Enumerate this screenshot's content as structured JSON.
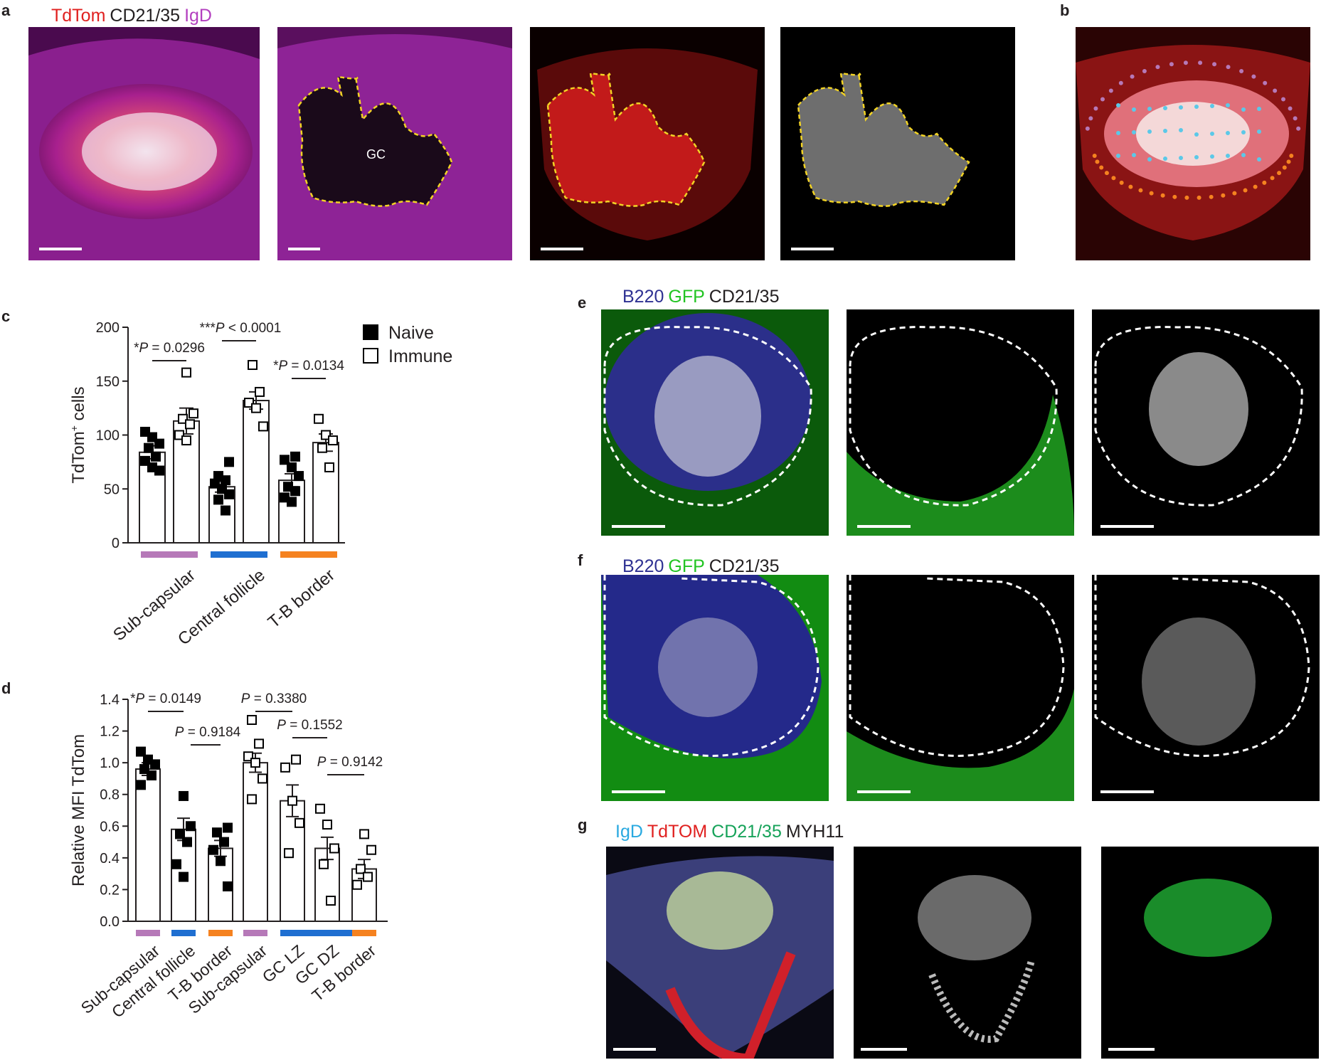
{
  "panels": {
    "a": {
      "letter": "a",
      "stain": [
        {
          "text": "TdTom",
          "color": "#e0201f"
        },
        {
          "text": "CD21/35",
          "color": "#231f20"
        },
        {
          "text": "IgD",
          "color": "#b33fbf"
        }
      ],
      "gc_label": "GC"
    },
    "b": {
      "letter": "b"
    },
    "c": {
      "letter": "c"
    },
    "d": {
      "letter": "d"
    },
    "e": {
      "letter": "e",
      "stain": [
        {
          "text": "B220",
          "color": "#2e3192"
        },
        {
          "text": "GFP",
          "color": "#22c422"
        },
        {
          "text": "CD21/35",
          "color": "#231f20"
        }
      ]
    },
    "f": {
      "letter": "f",
      "stain": [
        {
          "text": "B220",
          "color": "#2e3192"
        },
        {
          "text": "GFP",
          "color": "#22c422"
        },
        {
          "text": "CD21/35",
          "color": "#231f20"
        }
      ]
    },
    "g": {
      "letter": "g",
      "stain": [
        {
          "text": "IgD",
          "color": "#29a9e0"
        },
        {
          "text": "TdTOM",
          "color": "#e0201f"
        },
        {
          "text": "CD21/35",
          "color": "#17a35a"
        },
        {
          "text": "MYH11",
          "color": "#231f20"
        }
      ]
    }
  },
  "region_colors": {
    "subcapsular": "#b679b8",
    "central": "#1f6fd1",
    "tb_border": "#f58220"
  },
  "chart_data": [
    {
      "id": "c",
      "type": "bar",
      "ylabel_main": "TdTom",
      "ylabel_sup": "+",
      "ylabel_rest": " cells",
      "ylim": [
        0,
        200
      ],
      "yticks": [
        0,
        50,
        100,
        150,
        200
      ],
      "legend": [
        {
          "name": "Naive",
          "filled": true
        },
        {
          "name": "Immune",
          "filled": false
        }
      ],
      "groups": [
        "Sub-capsular",
        "Central follicle",
        "T-B border"
      ],
      "bars": [
        {
          "group": 0,
          "filled": true,
          "mean": 84,
          "sem": 6,
          "points": [
            103,
            98,
            92,
            88,
            80,
            76,
            70,
            67
          ]
        },
        {
          "group": 0,
          "filled": false,
          "mean": 113,
          "sem": 12,
          "points": [
            158,
            120,
            115,
            110,
            100,
            95
          ]
        },
        {
          "group": 1,
          "filled": true,
          "mean": 52,
          "sem": 5,
          "points": [
            75,
            62,
            58,
            55,
            50,
            45,
            40,
            30
          ]
        },
        {
          "group": 1,
          "filled": false,
          "mean": 132,
          "sem": 8,
          "points": [
            165,
            140,
            130,
            125,
            108
          ]
        },
        {
          "group": 2,
          "filled": true,
          "mean": 58,
          "sem": 6,
          "points": [
            80,
            77,
            70,
            62,
            52,
            48,
            42,
            38
          ]
        },
        {
          "group": 2,
          "filled": false,
          "mean": 93,
          "sem": 8,
          "points": [
            115,
            100,
            95,
            88,
            70
          ]
        }
      ],
      "annotations": [
        {
          "prefix": "*",
          "p": "P",
          "rest": " = 0.0296",
          "bars": [
            0,
            1
          ]
        },
        {
          "prefix": "***",
          "p": "P",
          "rest": " < 0.0001",
          "bars": [
            2,
            3
          ]
        },
        {
          "prefix": "*",
          "p": "P",
          "rest": " = 0.0134",
          "bars": [
            4,
            5
          ]
        }
      ]
    },
    {
      "id": "d",
      "type": "bar",
      "ylabel": "Relative MFI TdTom",
      "ylim": [
        0,
        1.4
      ],
      "yticks": [
        "0.0",
        "0.2",
        "0.4",
        "0.6",
        "0.8",
        "1.0",
        "1.2",
        "1.4"
      ],
      "categories": [
        "Sub-capsular",
        "Central follicle",
        "T-B border",
        "Sub-capsular",
        "GC LZ",
        "GC DZ",
        "T-B border"
      ],
      "bars": [
        {
          "filled": true,
          "mean": 0.96,
          "sem": 0.04,
          "points": [
            1.07,
            1.02,
            0.99,
            0.96,
            0.92,
            0.86
          ]
        },
        {
          "filled": true,
          "mean": 0.58,
          "sem": 0.07,
          "points": [
            0.79,
            0.6,
            0.55,
            0.5,
            0.36,
            0.28
          ]
        },
        {
          "filled": true,
          "mean": 0.46,
          "sem": 0.05,
          "points": [
            0.59,
            0.56,
            0.5,
            0.45,
            0.38,
            0.22
          ]
        },
        {
          "filled": false,
          "mean": 1.0,
          "sem": 0.06,
          "points": [
            1.27,
            1.12,
            1.04,
            1.0,
            0.9,
            0.77
          ]
        },
        {
          "filled": false,
          "mean": 0.76,
          "sem": 0.1,
          "points": [
            1.02,
            0.97,
            0.76,
            0.62,
            0.43
          ]
        },
        {
          "filled": false,
          "mean": 0.46,
          "sem": 0.07,
          "points": [
            0.71,
            0.61,
            0.46,
            0.36,
            0.13
          ]
        },
        {
          "filled": false,
          "mean": 0.33,
          "sem": 0.06,
          "points": [
            0.55,
            0.45,
            0.33,
            0.28,
            0.23
          ]
        }
      ],
      "bar_regions": [
        "subcapsular",
        "central",
        "tb_border",
        "subcapsular",
        "central",
        "central",
        "tb_border"
      ],
      "annotations": [
        {
          "prefix": "*",
          "p": "P",
          "rest": " = 0.0149",
          "bars": [
            0,
            1
          ]
        },
        {
          "prefix": "",
          "p": "P",
          "rest": " = 0.9184",
          "bars": [
            1,
            2
          ]
        },
        {
          "prefix": "",
          "p": "P",
          "rest": " = 0.3380",
          "bars": [
            3,
            4
          ]
        },
        {
          "prefix": "",
          "p": "P",
          "rest": " = 0.1552",
          "bars": [
            4,
            5
          ]
        },
        {
          "prefix": "",
          "p": "P",
          "rest": " = 0.9142",
          "bars": [
            5,
            6
          ]
        }
      ]
    }
  ]
}
